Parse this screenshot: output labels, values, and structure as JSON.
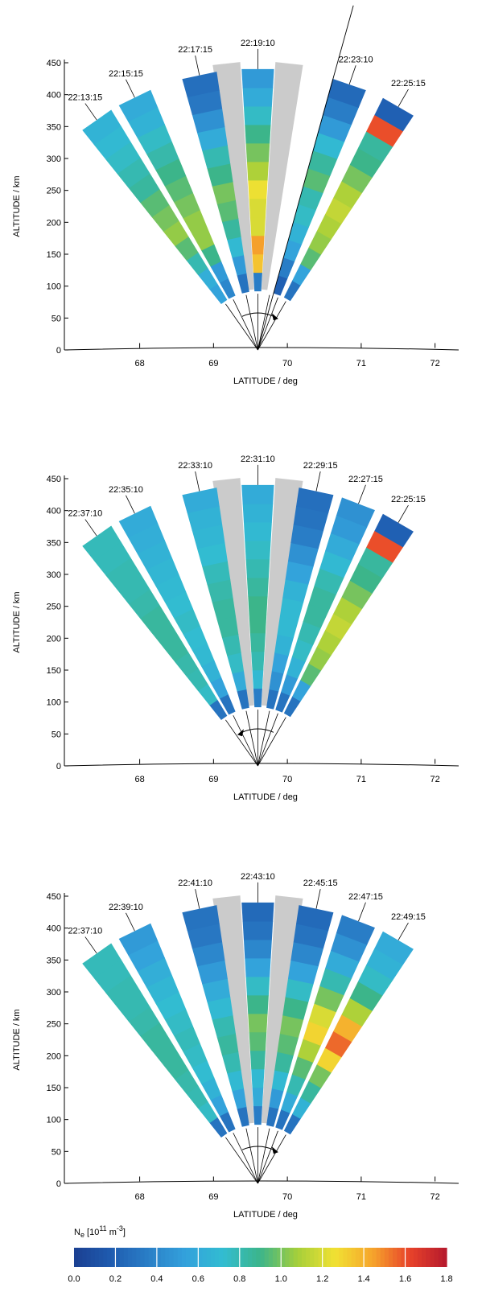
{
  "chart_data": [
    {
      "type": "heatmap",
      "panel": "top",
      "xlabel": "LATITUDE / deg",
      "ylabel": "ALTITUDE / km",
      "x_ticks": [
        "68",
        "69",
        "70",
        "71",
        "72"
      ],
      "y_ticks": [
        "0",
        "50",
        "100",
        "150",
        "200",
        "250",
        "300",
        "350",
        "400",
        "450"
      ],
      "xlim": [
        67.1,
        72.2
      ],
      "ylim": [
        0,
        450
      ],
      "sweep_direction": "clockwise",
      "beams": [
        {
          "label": "22:13:15",
          "angle_deg": -35,
          "profile": [
            0.55,
            0.62,
            0.8,
            0.95,
            1.05,
            1.0,
            0.95,
            0.85,
            0.8,
            0.75,
            0.7,
            0.66
          ]
        },
        {
          "label": "22:15:15",
          "angle_deg": -26,
          "profile": [
            0.4,
            0.5,
            0.9,
            1.05,
            1.05,
            1.0,
            0.95,
            0.9,
            0.82,
            0.75,
            0.65,
            0.6
          ]
        },
        {
          "label": "22:17:15",
          "angle_deg": -12,
          "profile": [
            0.3,
            0.5,
            0.7,
            0.85,
            0.95,
            1.0,
            0.9,
            0.8,
            0.6,
            0.45,
            0.32,
            0.28
          ]
        },
        {
          "label": "22:19:10",
          "angle_deg": 0,
          "profile": [
            0.35,
            1.35,
            1.45,
            1.2,
            1.2,
            1.25,
            1.1,
            1.0,
            0.9,
            0.75,
            0.6,
            0.5
          ]
        },
        {
          "label": "22:23:10",
          "angle_deg": 19,
          "profile": [
            0.2,
            0.35,
            0.55,
            0.65,
            0.75,
            0.8,
            0.95,
            0.85,
            0.7,
            0.5,
            0.35,
            0.25
          ]
        },
        {
          "label": "22:25:15",
          "angle_deg": 30,
          "profile": [
            0.3,
            0.55,
            0.95,
            1.05,
            1.1,
            1.15,
            1.1,
            1.0,
            0.9,
            0.85,
            1.6,
            0.2
          ]
        }
      ]
    },
    {
      "type": "heatmap",
      "panel": "middle",
      "xlabel": "LATITUDE / deg",
      "ylabel": "ALTITUDE / km",
      "x_ticks": [
        "68",
        "69",
        "70",
        "71",
        "72"
      ],
      "y_ticks": [
        "0",
        "50",
        "100",
        "150",
        "200",
        "250",
        "300",
        "350",
        "400",
        "450"
      ],
      "xlim": [
        67.1,
        72.2
      ],
      "ylim": [
        0,
        450
      ],
      "sweep_direction": "counterclockwise",
      "beams": [
        {
          "label": "22:37:10",
          "angle_deg": -35,
          "profile": [
            0.3,
            0.75,
            0.8,
            0.82,
            0.85,
            0.85,
            0.85,
            0.82,
            0.8,
            0.8,
            0.78,
            0.78
          ]
        },
        {
          "label": "22:35:10",
          "angle_deg": -26,
          "profile": [
            0.3,
            0.55,
            0.65,
            0.7,
            0.72,
            0.75,
            0.72,
            0.7,
            0.68,
            0.65,
            0.62,
            0.6
          ]
        },
        {
          "label": "22:33:10",
          "angle_deg": -12,
          "profile": [
            0.3,
            0.6,
            0.75,
            0.8,
            0.85,
            0.85,
            0.82,
            0.78,
            0.72,
            0.68,
            0.65,
            0.6
          ]
        },
        {
          "label": "22:31:10",
          "angle_deg": 0,
          "profile": [
            0.35,
            0.7,
            0.8,
            0.85,
            0.9,
            0.9,
            0.85,
            0.8,
            0.75,
            0.7,
            0.65,
            0.6
          ]
        },
        {
          "label": "22:29:15",
          "angle_deg": 12,
          "profile": [
            0.3,
            0.45,
            0.55,
            0.65,
            0.7,
            0.7,
            0.65,
            0.55,
            0.45,
            0.35,
            0.3,
            0.28
          ]
        },
        {
          "label": "22:27:15",
          "angle_deg": 21,
          "profile": [
            0.3,
            0.5,
            0.65,
            0.75,
            0.8,
            0.85,
            0.85,
            0.8,
            0.7,
            0.6,
            0.5,
            0.45
          ]
        },
        {
          "label": "22:25:15",
          "angle_deg": 30,
          "profile": [
            0.3,
            0.55,
            0.95,
            1.05,
            1.1,
            1.15,
            1.1,
            1.0,
            0.9,
            0.85,
            1.6,
            0.2
          ]
        }
      ]
    },
    {
      "type": "heatmap",
      "panel": "bottom",
      "xlabel": "LATITUDE / deg",
      "ylabel": "ALTITUDE / km",
      "x_ticks": [
        "68",
        "69",
        "70",
        "71",
        "72"
      ],
      "y_ticks": [
        "0",
        "50",
        "100",
        "150",
        "200",
        "250",
        "300",
        "350",
        "400",
        "450"
      ],
      "xlim": [
        67.1,
        72.2
      ],
      "ylim": [
        0,
        450
      ],
      "sweep_direction": "clockwise",
      "beams": [
        {
          "label": "22:37:10",
          "angle_deg": -35,
          "profile": [
            0.3,
            0.75,
            0.8,
            0.82,
            0.85,
            0.85,
            0.85,
            0.82,
            0.8,
            0.8,
            0.78,
            0.78
          ]
        },
        {
          "label": "22:39:10",
          "angle_deg": -26,
          "profile": [
            0.3,
            0.55,
            0.65,
            0.72,
            0.75,
            0.78,
            0.75,
            0.72,
            0.68,
            0.62,
            0.55,
            0.5
          ]
        },
        {
          "label": "22:41:10",
          "angle_deg": -12,
          "profile": [
            0.3,
            0.55,
            0.7,
            0.8,
            0.85,
            0.8,
            0.7,
            0.6,
            0.5,
            0.4,
            0.32,
            0.3
          ]
        },
        {
          "label": "22:43:10",
          "angle_deg": 0,
          "profile": [
            0.35,
            0.6,
            0.7,
            0.85,
            0.95,
            1.0,
            0.9,
            0.75,
            0.55,
            0.4,
            0.3,
            0.25
          ]
        },
        {
          "label": "22:45:15",
          "angle_deg": 12,
          "profile": [
            0.3,
            0.5,
            0.7,
            0.85,
            0.95,
            1.0,
            0.9,
            0.75,
            0.55,
            0.4,
            0.3,
            0.25
          ]
        },
        {
          "label": "22:47:15",
          "angle_deg": 21,
          "profile": [
            0.3,
            0.6,
            0.8,
            0.95,
            1.1,
            1.3,
            1.2,
            1.0,
            0.8,
            0.6,
            0.45,
            0.35
          ]
        },
        {
          "label": "22:49:15",
          "angle_deg": 30,
          "profile": [
            0.3,
            0.65,
            0.85,
            1.0,
            1.3,
            1.55,
            1.4,
            1.1,
            0.9,
            0.75,
            0.65,
            0.6
          ]
        }
      ]
    }
  ],
  "colorbar": {
    "label_base": "N",
    "label_sub": "e",
    "label_units_prefix": "[10",
    "label_units_exp1": "11",
    "label_units_mid": " m",
    "label_units_exp2": "-3",
    "label_units_suffix": "]",
    "min": 0.0,
    "max": 1.8,
    "ticks": [
      "0.0",
      "0.2",
      "0.4",
      "0.6",
      "0.8",
      "1.0",
      "1.2",
      "1.4",
      "1.6",
      "1.8"
    ],
    "stops": [
      "#1b3f91",
      "#1f5cb0",
      "#2a7fc7",
      "#33a2dc",
      "#32bcd1",
      "#3cb58a",
      "#a6cf3a",
      "#f1e133",
      "#f6a52c",
      "#e8432a",
      "#b5192d"
    ]
  }
}
